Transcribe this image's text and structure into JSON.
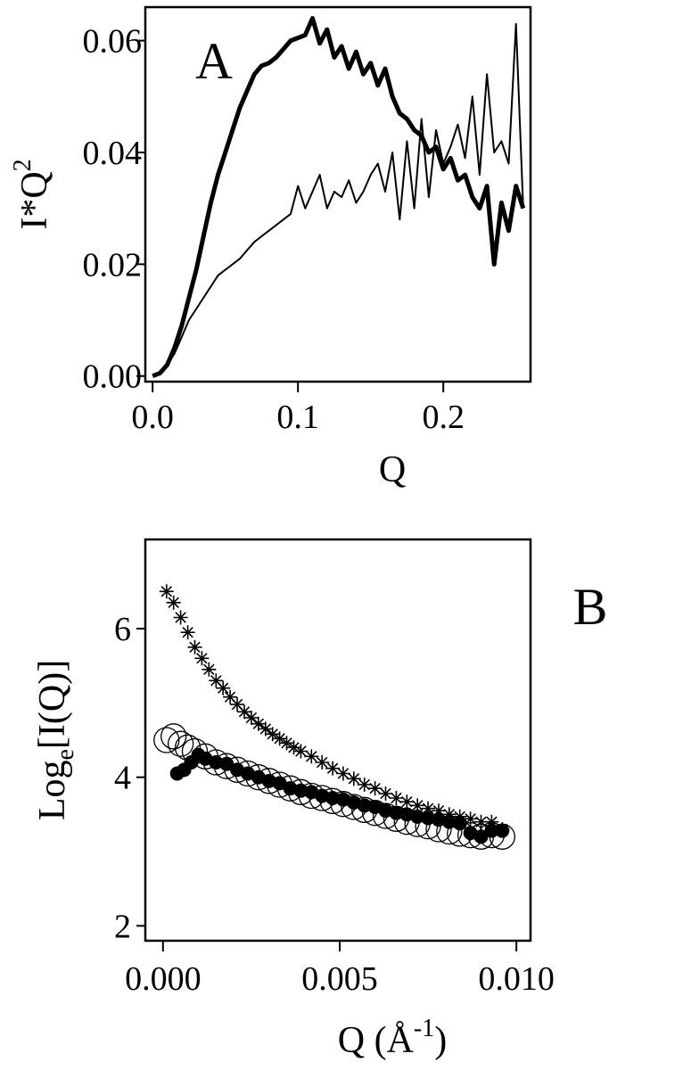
{
  "chart_data": [
    {
      "panel": "A",
      "type": "line",
      "panel_label": "A",
      "xlabel": "Q",
      "ylabel_main": "I*Q",
      "ylabel_sup": "2",
      "xlim": [
        -0.005,
        0.26
      ],
      "ylim": [
        -0.001,
        0.066
      ],
      "xticks": [
        0.0,
        0.1,
        0.2
      ],
      "xtick_labels": [
        "0.0",
        "0.1",
        "0.2"
      ],
      "yticks": [
        0.0,
        0.02,
        0.04,
        0.06
      ],
      "ytick_labels": [
        "0.00",
        "0.02",
        "0.04",
        "0.06"
      ],
      "series": [
        {
          "style": "thick",
          "x": [
            0.0,
            0.005,
            0.01,
            0.015,
            0.02,
            0.025,
            0.03,
            0.035,
            0.04,
            0.045,
            0.05,
            0.055,
            0.06,
            0.065,
            0.07,
            0.075,
            0.08,
            0.085,
            0.09,
            0.095,
            0.1,
            0.105,
            0.11,
            0.115,
            0.12,
            0.125,
            0.13,
            0.135,
            0.14,
            0.145,
            0.15,
            0.155,
            0.16,
            0.165,
            0.17,
            0.175,
            0.18,
            0.185,
            0.19,
            0.195,
            0.2,
            0.205,
            0.21,
            0.215,
            0.22,
            0.225,
            0.23,
            0.235,
            0.24,
            0.245,
            0.25,
            0.255
          ],
          "y": [
            0.0,
            0.0005,
            0.002,
            0.005,
            0.009,
            0.014,
            0.019,
            0.025,
            0.031,
            0.036,
            0.04,
            0.044,
            0.048,
            0.051,
            0.054,
            0.0555,
            0.056,
            0.057,
            0.0585,
            0.06,
            0.0605,
            0.061,
            0.064,
            0.0595,
            0.062,
            0.057,
            0.059,
            0.055,
            0.058,
            0.054,
            0.056,
            0.052,
            0.055,
            0.05,
            0.047,
            0.046,
            0.044,
            0.043,
            0.04,
            0.041,
            0.037,
            0.039,
            0.035,
            0.036,
            0.032,
            0.03,
            0.034,
            0.02,
            0.031,
            0.026,
            0.034,
            0.03
          ]
        },
        {
          "style": "thin",
          "x": [
            0.0,
            0.005,
            0.01,
            0.015,
            0.02,
            0.025,
            0.03,
            0.035,
            0.04,
            0.045,
            0.05,
            0.055,
            0.06,
            0.065,
            0.07,
            0.075,
            0.08,
            0.085,
            0.09,
            0.095,
            0.1,
            0.105,
            0.11,
            0.115,
            0.12,
            0.125,
            0.13,
            0.135,
            0.14,
            0.145,
            0.15,
            0.155,
            0.16,
            0.165,
            0.17,
            0.175,
            0.18,
            0.185,
            0.19,
            0.195,
            0.2,
            0.205,
            0.21,
            0.215,
            0.22,
            0.225,
            0.23,
            0.235,
            0.24,
            0.245,
            0.25,
            0.255
          ],
          "y": [
            0.0,
            0.0005,
            0.002,
            0.004,
            0.007,
            0.01,
            0.012,
            0.014,
            0.016,
            0.018,
            0.019,
            0.02,
            0.021,
            0.0225,
            0.024,
            0.025,
            0.026,
            0.027,
            0.028,
            0.029,
            0.034,
            0.03,
            0.033,
            0.036,
            0.03,
            0.033,
            0.032,
            0.035,
            0.031,
            0.033,
            0.036,
            0.038,
            0.033,
            0.04,
            0.028,
            0.042,
            0.03,
            0.046,
            0.032,
            0.044,
            0.038,
            0.041,
            0.045,
            0.039,
            0.05,
            0.036,
            0.054,
            0.04,
            0.042,
            0.038,
            0.063,
            0.03
          ]
        }
      ]
    },
    {
      "panel": "B",
      "type": "scatter",
      "panel_label": "B",
      "xlabel_main": "Q (",
      "xlabel_unit": "Å",
      "xlabel_sup": "-1",
      "xlabel_close": ")",
      "ylabel_main": "Log",
      "ylabel_sub": "e",
      "ylabel_rest": "[I(Q)]",
      "xlim": [
        -0.0005,
        0.0104
      ],
      "ylim": [
        1.8,
        7.2
      ],
      "xticks": [
        0.0,
        0.005,
        0.01
      ],
      "xtick_labels": [
        "0.000",
        "0.005",
        "0.010"
      ],
      "yticks": [
        2,
        4,
        6
      ],
      "ytick_labels": [
        "2",
        "4",
        "6"
      ],
      "series": [
        {
          "marker": "star",
          "x": [
            0.0001,
            0.0003,
            0.0005,
            0.0007,
            0.0009,
            0.0011,
            0.0013,
            0.0015,
            0.0017,
            0.0019,
            0.0021,
            0.0023,
            0.0025,
            0.0027,
            0.0029,
            0.0031,
            0.0033,
            0.0035,
            0.0037,
            0.0039,
            0.0042,
            0.0045,
            0.0048,
            0.0051,
            0.0054,
            0.0057,
            0.006,
            0.0063,
            0.0066,
            0.0069,
            0.0072,
            0.0075,
            0.0078,
            0.0081,
            0.0084,
            0.0087,
            0.009,
            0.0093,
            0.0096
          ],
          "y": [
            6.5,
            6.35,
            6.15,
            5.95,
            5.75,
            5.6,
            5.45,
            5.3,
            5.2,
            5.08,
            4.98,
            4.88,
            4.8,
            4.72,
            4.65,
            4.58,
            4.52,
            4.46,
            4.4,
            4.35,
            4.28,
            4.2,
            4.12,
            4.05,
            3.98,
            3.9,
            3.85,
            3.78,
            3.72,
            3.67,
            3.62,
            3.58,
            3.55,
            3.5,
            3.47,
            3.44,
            3.4,
            3.4,
            3.3
          ]
        },
        {
          "marker": "open-circle",
          "x": [
            0.0001,
            0.0003,
            0.0005,
            0.0007,
            0.0009,
            0.0012,
            0.0015,
            0.0018,
            0.0021,
            0.0024,
            0.0027,
            0.003,
            0.0033,
            0.0036,
            0.0039,
            0.0042,
            0.0045,
            0.0048,
            0.0051,
            0.0054,
            0.0057,
            0.006,
            0.0063,
            0.0066,
            0.0069,
            0.0072,
            0.0075,
            0.0078,
            0.0081,
            0.0084,
            0.0087,
            0.009,
            0.0093,
            0.0096
          ],
          "y": [
            4.5,
            4.55,
            4.45,
            4.4,
            4.35,
            4.28,
            4.2,
            4.15,
            4.1,
            4.05,
            4.0,
            3.95,
            3.9,
            3.85,
            3.8,
            3.75,
            3.72,
            3.68,
            3.64,
            3.6,
            3.56,
            3.52,
            3.48,
            3.44,
            3.4,
            3.37,
            3.34,
            3.3,
            3.27,
            3.24,
            3.22,
            3.2,
            3.22,
            3.2
          ]
        },
        {
          "marker": "filled-circle",
          "x": [
            0.0004,
            0.0006,
            0.0008,
            0.001,
            0.0012,
            0.0015,
            0.0018,
            0.0021,
            0.0024,
            0.0027,
            0.003,
            0.0033,
            0.0036,
            0.0039,
            0.0042,
            0.0045,
            0.0048,
            0.0051,
            0.0054,
            0.0057,
            0.006,
            0.0063,
            0.0066,
            0.0069,
            0.0072,
            0.0075,
            0.0078,
            0.0081,
            0.0084,
            0.0087,
            0.009,
            0.0093,
            0.0096
          ],
          "y": [
            4.05,
            4.1,
            4.2,
            4.3,
            4.25,
            4.2,
            4.18,
            4.1,
            4.05,
            4.0,
            3.95,
            3.92,
            3.85,
            3.82,
            3.8,
            3.75,
            3.72,
            3.7,
            3.66,
            3.62,
            3.6,
            3.55,
            3.52,
            3.5,
            3.47,
            3.45,
            3.43,
            3.4,
            3.38,
            3.25,
            3.2,
            3.28,
            3.28
          ]
        }
      ]
    }
  ]
}
